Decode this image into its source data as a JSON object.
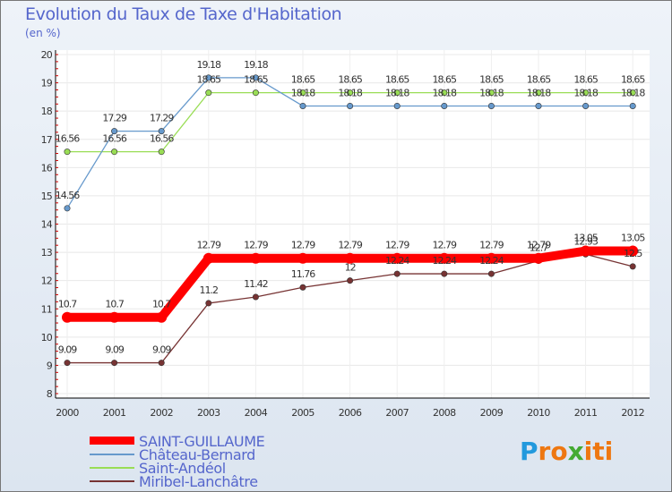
{
  "title": "Evolution du Taux de Taxe d'Habitation",
  "unit": "(en %)",
  "logo": {
    "text": "Proxiti",
    "letters": [
      "P",
      "r",
      "o",
      "x",
      "i",
      "t",
      "i"
    ],
    "colors": [
      "#2299dd",
      "#ee7711",
      "#ee7711",
      "#44aa33",
      "#ee7711",
      "#ee7711",
      "#ee7711"
    ]
  },
  "chart_data": {
    "type": "line",
    "title": "Evolution du Taux de Taxe d'Habitation",
    "ylabel": "(en %)",
    "x": [
      "2000",
      "2001",
      "2002",
      "2003",
      "2004",
      "2005",
      "2006",
      "2007",
      "2008",
      "2009",
      "2010",
      "2011",
      "2012"
    ],
    "yticks": [
      "8",
      "9",
      "10",
      "11",
      "12",
      "13",
      "14",
      "15",
      "16",
      "17",
      "18",
      "19",
      "20"
    ],
    "ylim": [
      8,
      20
    ],
    "series": [
      {
        "name": "SAINT-GUILLAUME",
        "color": "#ff0000",
        "values": [
          10.7,
          10.7,
          10.7,
          12.79,
          12.79,
          12.79,
          12.79,
          12.79,
          12.79,
          12.79,
          12.79,
          13.05,
          13.05
        ],
        "labels": [
          "10.7",
          "10.7",
          "10.7",
          "12.79",
          "12.79",
          "12.79",
          "12.79",
          "12.79",
          "12.79",
          "12.79",
          "12.79",
          "13.05",
          "13.05"
        ]
      },
      {
        "name": "Château-Bernard",
        "color": "#6699cc",
        "values": [
          14.56,
          17.29,
          17.29,
          19.18,
          19.18,
          18.18,
          18.18,
          18.18,
          18.18,
          18.18,
          18.18,
          18.18,
          18.18
        ],
        "labels": [
          "14.56",
          "17.29",
          "17.29",
          "19.18",
          "19.18",
          "18.18",
          "18.18",
          "18.18",
          "18.18",
          "18.18",
          "18.18",
          "18.18",
          "18.18"
        ]
      },
      {
        "name": "Saint-Andéol",
        "color": "#99dd55",
        "values": [
          16.56,
          16.56,
          16.56,
          18.65,
          18.65,
          18.65,
          18.65,
          18.65,
          18.65,
          18.65,
          18.65,
          18.65,
          18.65
        ],
        "labels": [
          "16.56",
          "16.56",
          "16.56",
          "18.65",
          "18.65",
          "18.65",
          "18.65",
          "18.65",
          "18.65",
          "18.65",
          "18.65",
          "18.65",
          "18.65"
        ]
      },
      {
        "name": "Miribel-Lanchâtre",
        "color": "#773333",
        "values": [
          9.09,
          9.09,
          9.09,
          11.2,
          11.42,
          11.76,
          12,
          12.24,
          12.24,
          12.24,
          12.7,
          12.93,
          12.5
        ],
        "labels": [
          "9.09",
          "9.09",
          "9.09",
          "11.2",
          "11.42",
          "11.76",
          "12",
          "12.24",
          "12.24",
          "12.24",
          "12.7",
          "12.93",
          "12.5"
        ]
      }
    ]
  }
}
